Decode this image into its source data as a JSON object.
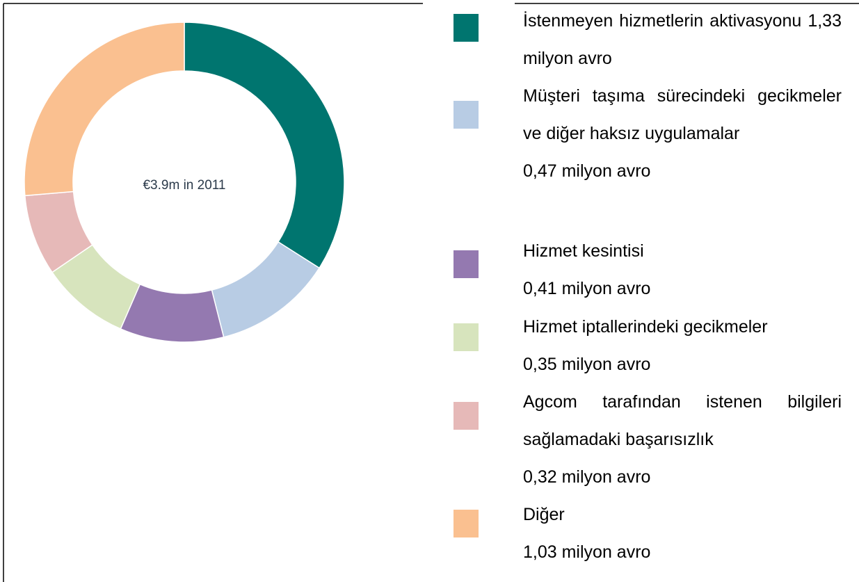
{
  "chart_data": {
    "type": "donut",
    "center_label": "€3.9m in 2011",
    "categories": [
      "İstenmeyen hizmetlerin aktivasyonu",
      "Müşteri taşıma sürecindeki gecikmeler ve diğer haksız uygulamalar",
      "Hizmet kesintisi",
      "Hizmet iptallerindeki gecikmeler",
      "Agcom tarafından istenen bilgileri sağlamadaki başarısızlık",
      "Diğer"
    ],
    "values": [
      1.33,
      0.47,
      0.41,
      0.35,
      0.32,
      1.03
    ],
    "value_labels": [
      "1,33 milyon avro",
      "0,47 milyon avro",
      "0,41 milyon avro",
      "0,35 milyon avro",
      "0,32 milyon avro",
      "1,03 milyon avro"
    ],
    "colors": [
      "#00756f",
      "#b8cce4",
      "#9479b0",
      "#d7e4bd",
      "#e6b9b8",
      "#fac090"
    ]
  }
}
